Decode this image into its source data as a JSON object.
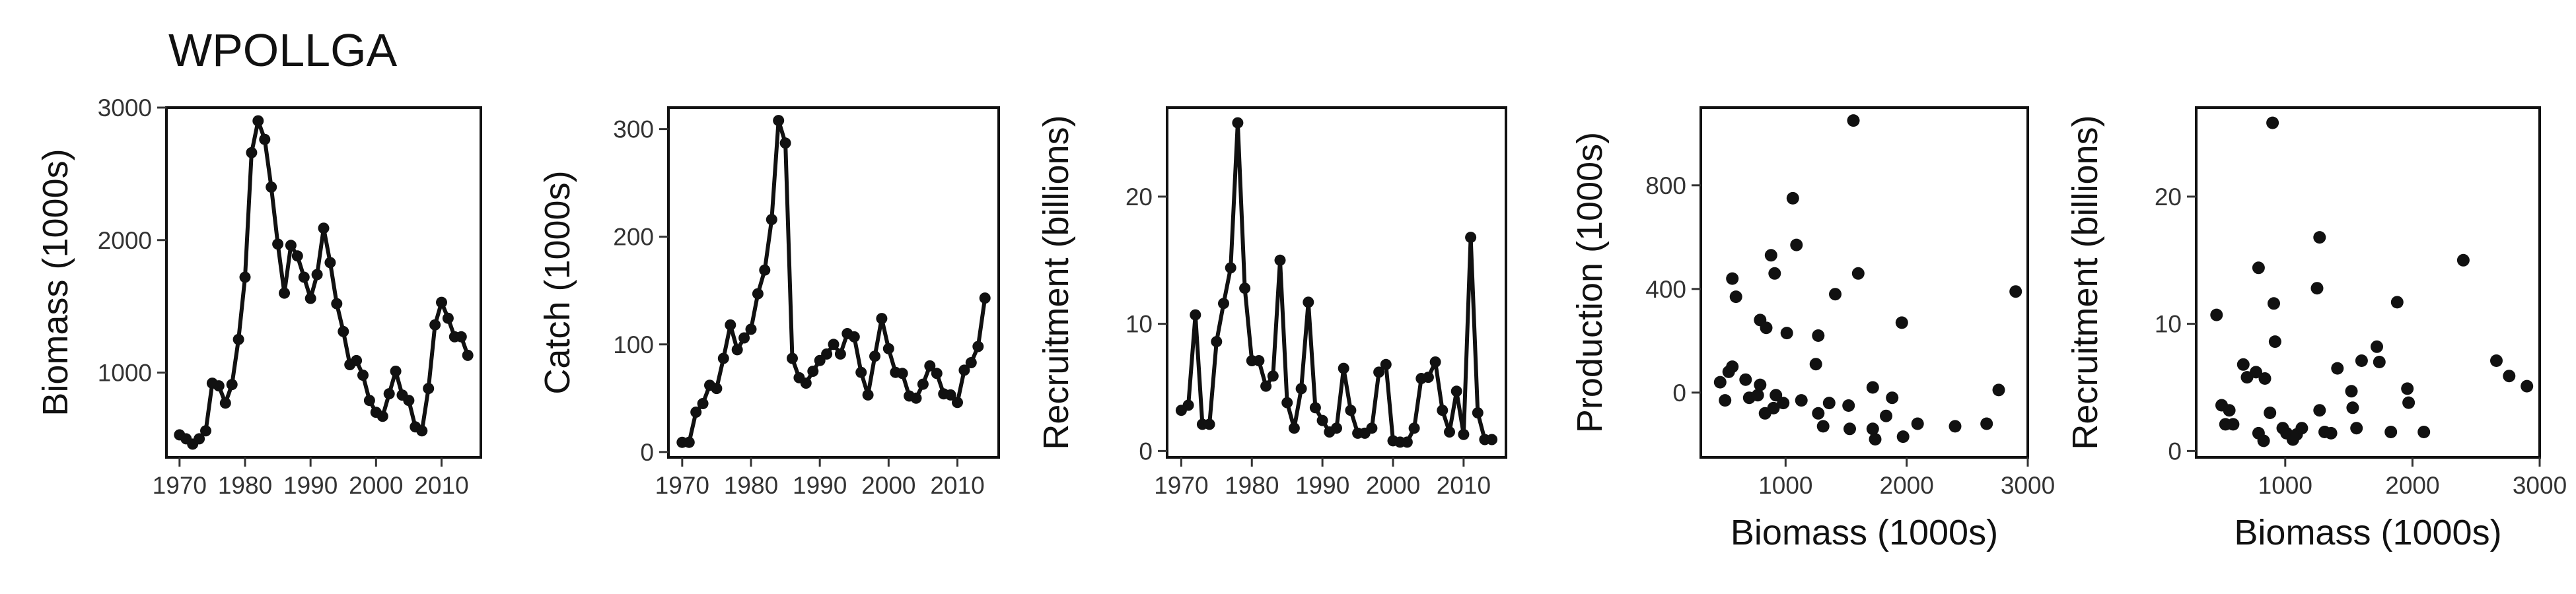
{
  "figure": {
    "title": "WPOLLGA"
  },
  "chart_data": [
    {
      "type": "line",
      "title": "",
      "xlabel": "",
      "ylabel": "Biomass (1000s)",
      "xlim": [
        1968,
        2016
      ],
      "ylim": [
        360,
        3000
      ],
      "xticks": [
        1970,
        1980,
        1990,
        2000,
        2010
      ],
      "yticks": [
        1000,
        2000,
        3000
      ],
      "grid": false,
      "series": [
        {
          "x": [
            1970,
            1971,
            1972,
            1973,
            1974,
            1975,
            1976,
            1977,
            1978,
            1979,
            1980,
            1981,
            1982,
            1983,
            1984,
            1985,
            1986,
            1987,
            1988,
            1989,
            1990,
            1991,
            1992,
            1993,
            1994,
            1995,
            1996,
            1997,
            1998,
            1999,
            2000,
            2001,
            2002,
            2003,
            2004,
            2005,
            2006,
            2007,
            2008,
            2009,
            2010,
            2011,
            2012,
            2013,
            2014
          ],
          "values": [
            530,
            500,
            460,
            500,
            560,
            920,
            900,
            770,
            910,
            1250,
            1720,
            2660,
            2900,
            2760,
            2400,
            1970,
            1600,
            1960,
            1880,
            1720,
            1560,
            1740,
            2090,
            1830,
            1520,
            1310,
            1060,
            1090,
            980,
            790,
            700,
            670,
            840,
            1010,
            830,
            790,
            590,
            560,
            880,
            1360,
            1530,
            1410,
            1270,
            1270,
            1130
          ]
        }
      ]
    },
    {
      "type": "line",
      "title": "",
      "xlabel": "",
      "ylabel": "Catch (1000s)",
      "xlim": [
        1968,
        2016
      ],
      "ylim": [
        -5,
        320
      ],
      "xticks": [
        1970,
        1980,
        1990,
        2000,
        2010
      ],
      "yticks": [
        0,
        100,
        200,
        300
      ],
      "grid": false,
      "series": [
        {
          "x": [
            1970,
            1971,
            1972,
            1973,
            1974,
            1975,
            1976,
            1977,
            1978,
            1979,
            1980,
            1981,
            1982,
            1983,
            1984,
            1985,
            1986,
            1987,
            1988,
            1989,
            1990,
            1991,
            1992,
            1993,
            1994,
            1995,
            1996,
            1997,
            1998,
            1999,
            2000,
            2001,
            2002,
            2003,
            2004,
            2005,
            2006,
            2007,
            2008,
            2009,
            2010,
            2011,
            2012,
            2013,
            2014
          ],
          "values": [
            9,
            9,
            37,
            45,
            62,
            59,
            87,
            118,
            95,
            106,
            114,
            147,
            169,
            216,
            308,
            287,
            87,
            69,
            64,
            75,
            85,
            91,
            100,
            91,
            110,
            107,
            74,
            53,
            89,
            124,
            96,
            74,
            73,
            52,
            50,
            63,
            80,
            73,
            54,
            53,
            46,
            76,
            83,
            98,
            143
          ]
        }
      ]
    },
    {
      "type": "line",
      "title": "",
      "xlabel": "",
      "ylabel": "Recruitment (billions)",
      "xlim": [
        1968,
        2016
      ],
      "ylim": [
        -0.5,
        27
      ],
      "xticks": [
        1970,
        1980,
        1990,
        2000,
        2010
      ],
      "yticks": [
        0,
        10,
        20
      ],
      "grid": false,
      "series": [
        {
          "x": [
            1970,
            1971,
            1972,
            1973,
            1974,
            1975,
            1976,
            1977,
            1978,
            1979,
            1980,
            1981,
            1982,
            1983,
            1984,
            1985,
            1986,
            1987,
            1988,
            1989,
            1990,
            1991,
            1992,
            1993,
            1994,
            1995,
            1996,
            1997,
            1998,
            1999,
            2000,
            2001,
            2002,
            2003,
            2004,
            2005,
            2006,
            2007,
            2008,
            2009,
            2010,
            2011,
            2012,
            2013,
            2014
          ],
          "values": [
            3.2,
            3.6,
            10.7,
            2.1,
            2.1,
            8.6,
            11.6,
            14.4,
            25.8,
            12.8,
            7.1,
            7.1,
            5.1,
            5.9,
            15.0,
            3.8,
            1.8,
            4.9,
            11.7,
            3.4,
            2.4,
            1.5,
            1.8,
            6.5,
            3.2,
            1.4,
            1.4,
            1.8,
            6.2,
            6.8,
            0.8,
            0.7,
            0.7,
            1.8,
            5.7,
            5.8,
            7.0,
            3.2,
            1.5,
            4.7,
            1.3,
            16.8,
            3.0,
            0.9,
            0.9
          ]
        }
      ]
    },
    {
      "type": "scatter",
      "title": "",
      "xlabel": "Biomass (1000s)",
      "ylabel": "Production (1000s)",
      "xlim": [
        300,
        3000
      ],
      "ylim": [
        -250,
        1100
      ],
      "xticks": [
        1000,
        2000,
        3000
      ],
      "yticks": [
        0,
        400,
        800
      ],
      "grid": false,
      "series": [
        {
          "x": [
            460,
            500,
            530,
            560,
            560,
            590,
            670,
            700,
            770,
            790,
            790,
            830,
            840,
            880,
            900,
            910,
            920,
            980,
            1010,
            1060,
            1090,
            1130,
            1250,
            1270,
            1270,
            1310,
            1360,
            1410,
            1520,
            1530,
            1560,
            1600,
            1720,
            1720,
            1740,
            1830,
            1880,
            1960,
            1970,
            2090,
            2400,
            2660,
            2760,
            2900
          ],
          "values": [
            40,
            -30,
            80,
            440,
            100,
            370,
            50,
            -20,
            -10,
            30,
            280,
            -80,
            250,
            530,
            -60,
            460,
            -10,
            -40,
            230,
            750,
            570,
            -30,
            110,
            -80,
            220,
            -130,
            -40,
            380,
            -50,
            -140,
            1050,
            460,
            20,
            -140,
            -180,
            -90,
            -20,
            270,
            -170,
            -120,
            -130,
            -120,
            10,
            390
          ]
        }
      ]
    },
    {
      "type": "scatter",
      "title": "",
      "xlabel": "Biomass (1000s)",
      "ylabel": "Recruitment (billions)",
      "xlim": [
        300,
        3000
      ],
      "ylim": [
        -0.5,
        27
      ],
      "xticks": [
        1000,
        2000,
        3000
      ],
      "yticks": [
        0,
        10,
        20
      ],
      "grid": false,
      "series": [
        {
          "x": [
            460,
            500,
            530,
            560,
            590,
            670,
            700,
            770,
            790,
            790,
            830,
            840,
            880,
            900,
            910,
            920,
            980,
            1010,
            1060,
            1090,
            1130,
            1250,
            1270,
            1270,
            1310,
            1360,
            1410,
            1520,
            1530,
            1560,
            1600,
            1720,
            1740,
            1830,
            1880,
            1960,
            1970,
            2090,
            2400,
            2660,
            2760,
            2900
          ],
          "values": [
            10.7,
            3.6,
            2.1,
            3.2,
            2.1,
            6.8,
            5.8,
            6.2,
            1.4,
            14.4,
            0.8,
            5.7,
            3.0,
            25.8,
            11.6,
            8.6,
            1.8,
            1.4,
            0.9,
            1.3,
            1.8,
            12.8,
            16.8,
            3.2,
            1.5,
            1.4,
            6.5,
            4.7,
            3.4,
            1.8,
            7.1,
            8.2,
            7.0,
            1.5,
            11.7,
            4.9,
            3.8,
            1.5,
            15.0,
            7.1,
            5.9,
            5.1
          ]
        }
      ]
    }
  ]
}
